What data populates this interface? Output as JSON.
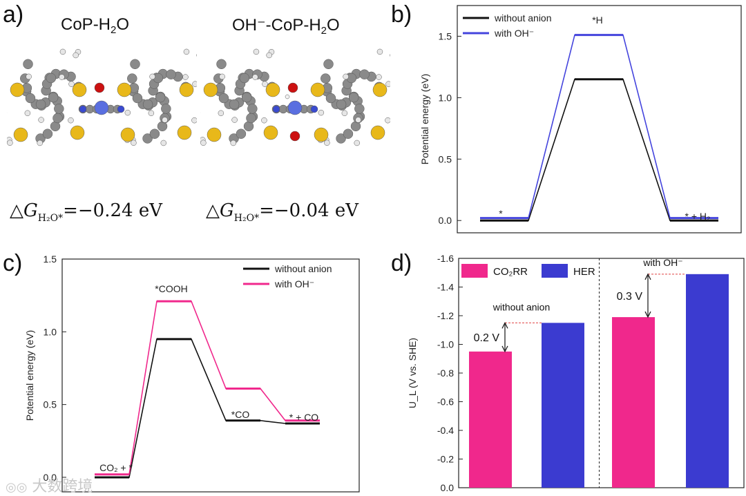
{
  "panel_a": {
    "label": "a)",
    "molecules": [
      {
        "title_main": "CoP-H",
        "title_sub": "2",
        "title_tail": "O",
        "dg_symbol": "△",
        "dg_var": "G",
        "dg_sub": "H₂O*",
        "dg_value": "=−0.24  eV"
      },
      {
        "title_main": "OH⁻-CoP-H",
        "title_sub": "2",
        "title_tail": "O",
        "dg_symbol": "△",
        "dg_var": "G",
        "dg_sub": "H₂O*",
        "dg_value": "=−0.04  eV"
      }
    ]
  },
  "colors": {
    "black": "#111111",
    "blue": "#4444dd",
    "pink": "#f0288c",
    "bar_pink": "#f0288c",
    "bar_blue": "#3b3bd0",
    "red_dash": "#e04040"
  },
  "watermark": "大数跨境",
  "chart_data": [
    {
      "id": "b",
      "panel_label": "b)",
      "type": "line",
      "ylabel": "Potential energy (eV)",
      "ylim": [
        -0.1,
        1.75
      ],
      "yticks": [
        "0.0",
        "0.5",
        "1.0",
        "1.5"
      ],
      "states": [
        "*",
        "*H",
        "* + H₂"
      ],
      "series": [
        {
          "name": "without anion",
          "values": [
            0.0,
            1.15,
            0.0
          ]
        },
        {
          "name": "with OH⁻",
          "values": [
            0.02,
            1.51,
            0.02
          ]
        }
      ],
      "legend": "top-left"
    },
    {
      "id": "c",
      "panel_label": "c)",
      "type": "line",
      "ylabel": "Potential energy (eV)",
      "ylim": [
        -0.1,
        1.5
      ],
      "yticks": [
        "0.0",
        "0.5",
        "1.0",
        "1.5"
      ],
      "states": [
        "CO₂ + *",
        "*COOH",
        "*CO",
        "* + CO"
      ],
      "series": [
        {
          "name": "without anion",
          "values": [
            0.0,
            0.95,
            0.39,
            0.37
          ]
        },
        {
          "name": "with OH⁻",
          "values": [
            0.02,
            1.21,
            0.61,
            0.39
          ]
        }
      ],
      "legend": "top-right"
    },
    {
      "id": "d",
      "panel_label": "d)",
      "type": "bar",
      "ylabel": "U_L (V vs. SHE)",
      "ylim": [
        0.0,
        -1.6
      ],
      "y_inverted": true,
      "yticks": [
        "0.0",
        "-0.2",
        "-0.4",
        "-0.6",
        "-0.8",
        "-1.0",
        "-1.2",
        "-1.4",
        "-1.6"
      ],
      "groups": [
        "without anion",
        "with OH⁻"
      ],
      "series": [
        {
          "name": "CO₂RR",
          "values": [
            -0.95,
            -1.19
          ]
        },
        {
          "name": "HER",
          "values": [
            -1.15,
            -1.49
          ]
        }
      ],
      "gap_labels": [
        "0.2 V",
        "0.3 V"
      ],
      "legend": "top-left"
    }
  ]
}
